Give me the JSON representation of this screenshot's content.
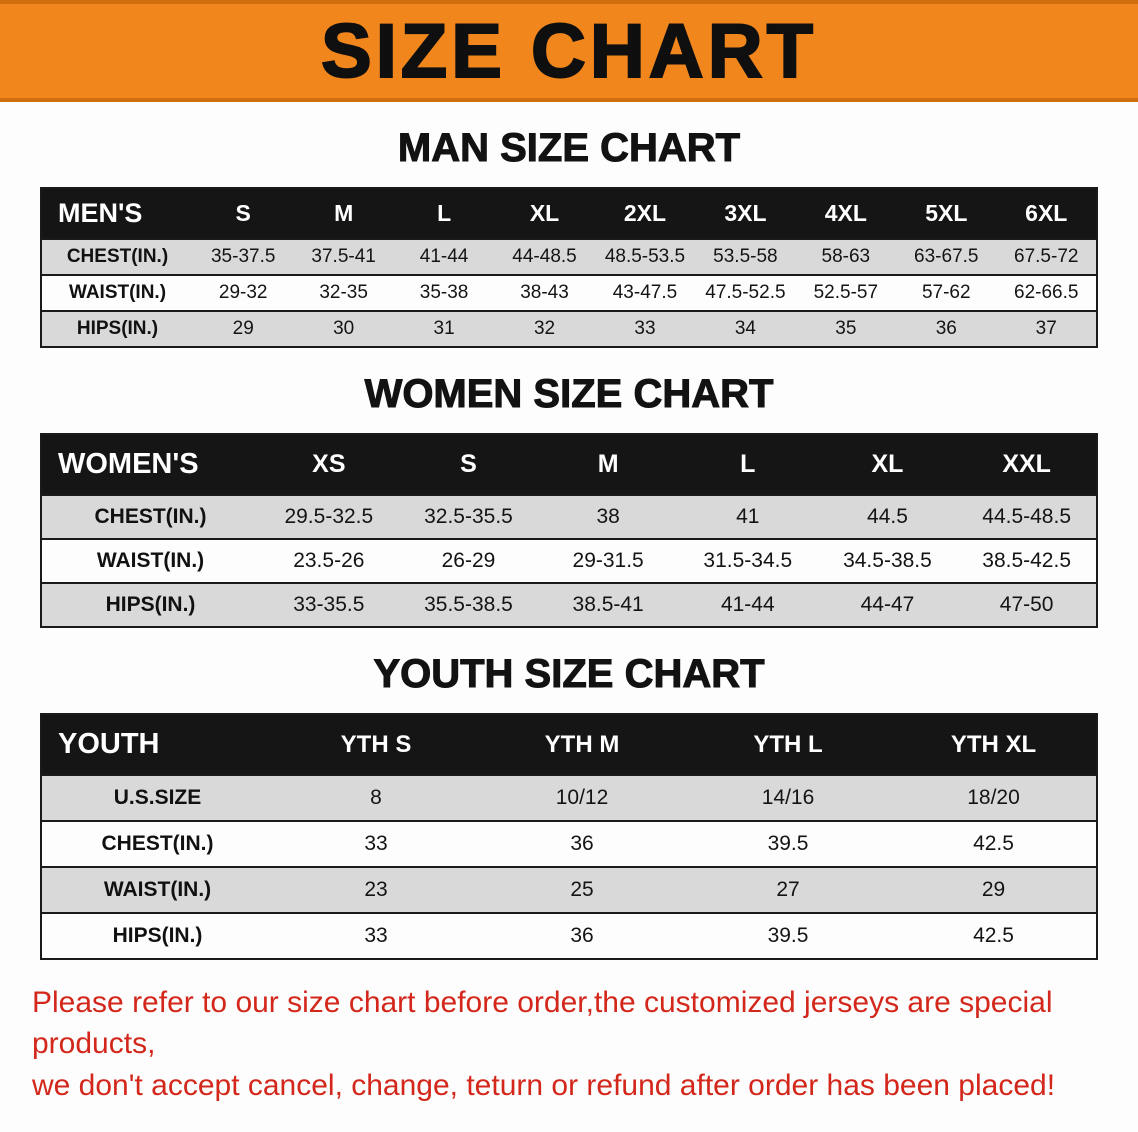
{
  "banner": {
    "title": "SIZE CHART"
  },
  "sections": [
    {
      "heading": "MAN SIZE CHART",
      "table": {
        "header": [
          "MEN'S",
          "S",
          "M",
          "L",
          "XL",
          "2XL",
          "3XL",
          "4XL",
          "5XL",
          "6XL"
        ],
        "rows": [
          {
            "label": "CHEST(IN.)",
            "values": [
              "35-37.5",
              "37.5-41",
              "41-44",
              "44-48.5",
              "48.5-53.5",
              "53.5-58",
              "58-63",
              "63-67.5",
              "67.5-72"
            ]
          },
          {
            "label": "WAIST(IN.)",
            "values": [
              "29-32",
              "32-35",
              "35-38",
              "38-43",
              "43-47.5",
              "47.5-52.5",
              "52.5-57",
              "57-62",
              "62-66.5"
            ]
          },
          {
            "label": "HIPS(IN.)",
            "values": [
              "29",
              "30",
              "31",
              "32",
              "33",
              "34",
              "35",
              "36",
              "37"
            ]
          }
        ]
      }
    },
    {
      "heading": "WOMEN SIZE CHART",
      "table": {
        "header": [
          "WOMEN'S",
          "XS",
          "S",
          "M",
          "L",
          "XL",
          "XXL"
        ],
        "rows": [
          {
            "label": "CHEST(IN.)",
            "values": [
              "29.5-32.5",
              "32.5-35.5",
              "38",
              "41",
              "44.5",
              "44.5-48.5"
            ]
          },
          {
            "label": "WAIST(IN.)",
            "values": [
              "23.5-26",
              "26-29",
              "29-31.5",
              "31.5-34.5",
              "34.5-38.5",
              "38.5-42.5"
            ]
          },
          {
            "label": "HIPS(IN.)",
            "values": [
              "33-35.5",
              "35.5-38.5",
              "38.5-41",
              "41-44",
              "44-47",
              "47-50"
            ]
          }
        ]
      }
    },
    {
      "heading": "YOUTH SIZE CHART",
      "table": {
        "header": [
          "YOUTH",
          "YTH S",
          "YTH M",
          "YTH L",
          "YTH XL"
        ],
        "rows": [
          {
            "label": "U.S.SIZE",
            "values": [
              "8",
              "10/12",
              "14/16",
              "18/20"
            ]
          },
          {
            "label": "CHEST(IN.)",
            "values": [
              "33",
              "36",
              "39.5",
              "42.5"
            ]
          },
          {
            "label": "WAIST(IN.)",
            "values": [
              "23",
              "25",
              "27",
              "29"
            ]
          },
          {
            "label": "HIPS(IN.)",
            "values": [
              "33",
              "36",
              "39.5",
              "42.5"
            ]
          }
        ]
      }
    }
  ],
  "disclaimer": {
    "line1": "Please refer to our size chart before order,the customized jerseys are special products,",
    "line2": "we don't accept cancel, change, teturn or refund after order has been placed!"
  },
  "colors": {
    "banner_bg": "#f1861d",
    "header_bg": "#151515",
    "row_shade": "#d9d9d9",
    "disclaimer_text": "#d3271b"
  }
}
